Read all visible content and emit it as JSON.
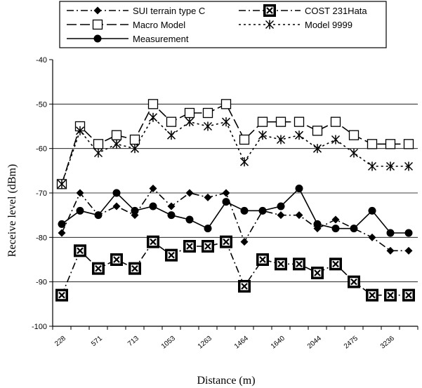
{
  "chart_data": {
    "type": "line",
    "xlabel": "Distance (m)",
    "ylabel": "Receive level (dBm)",
    "ylim": [
      -100,
      -40
    ],
    "yticks": [
      "-40",
      "-50",
      "-60",
      "-70",
      "-80",
      "-90",
      "-100"
    ],
    "x_tick_labels": [
      "228",
      "571",
      "713",
      "1053",
      "1263",
      "1464",
      "1640",
      "2044",
      "2475",
      "3236"
    ],
    "x_tick_positions": [
      0,
      2,
      4,
      6,
      8,
      10,
      12,
      14,
      16,
      18
    ],
    "x": [
      0,
      1,
      2,
      3,
      4,
      5,
      6,
      7,
      8,
      9,
      10,
      11,
      12,
      13,
      14,
      15,
      16,
      17,
      18,
      19
    ],
    "grid": "horizontal",
    "legend_position": "top",
    "series": [
      {
        "name": "SUI terrain type C",
        "color": "#000000",
        "marker": "diamond",
        "line": "dash-dot",
        "values": [
          -79,
          -70,
          -75,
          -73,
          -75,
          -69,
          -73,
          -70,
          -71,
          -70,
          -81,
          -74,
          -75,
          -75,
          -78,
          -76,
          -78,
          -80,
          -83,
          -83
        ]
      },
      {
        "name": "COST 231Hata",
        "color": "#000000",
        "marker": "x-box",
        "line": "dash-dot",
        "values": [
          -93,
          -83,
          -87,
          -85,
          -87,
          -81,
          -84,
          -82,
          -82,
          -81,
          -91,
          -85,
          -86,
          -86,
          -88,
          -86,
          -90,
          -93,
          -93,
          -93
        ]
      },
      {
        "name": "Macro Model",
        "color": "#000000",
        "marker": "square",
        "line": "long-dash",
        "values": [
          -68,
          -55,
          -59,
          -57,
          -58,
          -50,
          -54,
          -52,
          -52,
          -50,
          -58,
          -54,
          -54,
          -54,
          -56,
          -54,
          -57,
          -59,
          -59,
          -59
        ]
      },
      {
        "name": "Model 9999",
        "color": "#000000",
        "marker": "asterisk",
        "line": "dotted",
        "values": [
          -68,
          -56,
          -61,
          -59,
          -60,
          -53,
          -57,
          -54,
          -55,
          -54,
          -63,
          -57,
          -58,
          -57,
          -60,
          -58,
          -61,
          -64,
          -64,
          -64
        ]
      },
      {
        "name": "Measurement",
        "color": "#000000",
        "marker": "circle",
        "line": "solid",
        "values": [
          -77,
          -74,
          -75,
          -70,
          -74,
          -73,
          -75,
          -76,
          -78,
          -72,
          -74,
          -74,
          -73,
          -69,
          -77,
          -78,
          -78,
          -74,
          -79,
          -79
        ]
      }
    ]
  }
}
